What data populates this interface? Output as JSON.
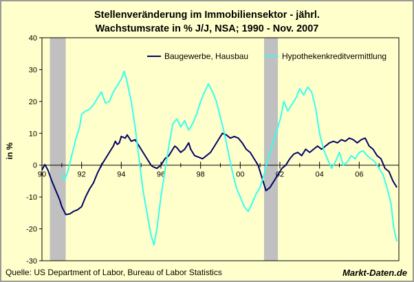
{
  "chart_data": {
    "type": "line",
    "title_lines": [
      "Stellenveränderung im Immobiliensektor - jährl.",
      "Wachstumsrate in % J/J, NSA; 1990 - Nov. 2007"
    ],
    "ylabel": "in %",
    "xlabel": "",
    "ylim": [
      -30,
      40
    ],
    "xlim": [
      1990,
      2008
    ],
    "y_ticks": [
      "40",
      "30",
      "20",
      "10",
      "0",
      "-10",
      "-20",
      "-30"
    ],
    "x_ticks": [
      "90",
      "92",
      "94",
      "96",
      "98",
      "00",
      "02",
      "04",
      "06"
    ],
    "grid": false,
    "legend_position": "top-right",
    "recessions": [
      [
        1990.4,
        1991.2
      ],
      [
        2001.2,
        2001.9
      ]
    ],
    "series": [
      {
        "name": "Baugewerbe, Hausbau",
        "color": "#000066",
        "points": [
          [
            1990.0,
            -1.5
          ],
          [
            1990.15,
            0.2
          ],
          [
            1990.3,
            -1.5
          ],
          [
            1990.5,
            -5
          ],
          [
            1990.7,
            -8
          ],
          [
            1990.9,
            -11
          ],
          [
            1991.0,
            -13
          ],
          [
            1991.2,
            -15.5
          ],
          [
            1991.4,
            -15.3
          ],
          [
            1991.6,
            -14.5
          ],
          [
            1991.8,
            -14
          ],
          [
            1992.0,
            -13
          ],
          [
            1992.2,
            -10
          ],
          [
            1992.4,
            -7.5
          ],
          [
            1992.6,
            -5.5
          ],
          [
            1992.8,
            -2.5
          ],
          [
            1993.0,
            0
          ],
          [
            1993.2,
            2
          ],
          [
            1993.4,
            4
          ],
          [
            1993.6,
            6
          ],
          [
            1993.7,
            7.5
          ],
          [
            1993.8,
            6.5
          ],
          [
            1993.9,
            7
          ],
          [
            1994.0,
            9
          ],
          [
            1994.2,
            8.5
          ],
          [
            1994.3,
            9.5
          ],
          [
            1994.5,
            7.5
          ],
          [
            1994.7,
            8
          ],
          [
            1994.9,
            6
          ],
          [
            1995.1,
            4
          ],
          [
            1995.3,
            2
          ],
          [
            1995.5,
            0
          ],
          [
            1995.6,
            -0.5
          ],
          [
            1995.8,
            -1
          ],
          [
            1996.0,
            0
          ],
          [
            1996.2,
            2
          ],
          [
            1996.4,
            3
          ],
          [
            1996.6,
            5
          ],
          [
            1996.7,
            6
          ],
          [
            1996.8,
            5.5
          ],
          [
            1997.0,
            4
          ],
          [
            1997.2,
            5
          ],
          [
            1997.4,
            7
          ],
          [
            1997.5,
            5
          ],
          [
            1997.7,
            3
          ],
          [
            1997.9,
            2.5
          ],
          [
            1998.1,
            2
          ],
          [
            1998.3,
            3
          ],
          [
            1998.5,
            4
          ],
          [
            1998.7,
            6
          ],
          [
            1998.9,
            8
          ],
          [
            1999.1,
            10
          ],
          [
            1999.3,
            9.5
          ],
          [
            1999.5,
            8.5
          ],
          [
            1999.7,
            9
          ],
          [
            1999.9,
            8.5
          ],
          [
            2000.1,
            7
          ],
          [
            2000.3,
            5
          ],
          [
            2000.5,
            4
          ],
          [
            2000.7,
            2
          ],
          [
            2000.9,
            0
          ],
          [
            2001.1,
            -4
          ],
          [
            2001.3,
            -8
          ],
          [
            2001.5,
            -7
          ],
          [
            2001.7,
            -5
          ],
          [
            2001.9,
            -3
          ],
          [
            2002.1,
            -1
          ],
          [
            2002.3,
            0
          ],
          [
            2002.5,
            2
          ],
          [
            2002.7,
            3.5
          ],
          [
            2002.9,
            4
          ],
          [
            2003.1,
            3
          ],
          [
            2003.3,
            5
          ],
          [
            2003.5,
            4
          ],
          [
            2003.7,
            5
          ],
          [
            2003.9,
            6
          ],
          [
            2004.1,
            5
          ],
          [
            2004.3,
            6
          ],
          [
            2004.5,
            7
          ],
          [
            2004.7,
            7.5
          ],
          [
            2004.9,
            7
          ],
          [
            2005.1,
            8
          ],
          [
            2005.3,
            7.5
          ],
          [
            2005.5,
            8.5
          ],
          [
            2005.7,
            8
          ],
          [
            2005.9,
            7
          ],
          [
            2006.1,
            8
          ],
          [
            2006.3,
            8.5
          ],
          [
            2006.5,
            6
          ],
          [
            2006.7,
            5
          ],
          [
            2006.9,
            3
          ],
          [
            2007.1,
            2
          ],
          [
            2007.3,
            -1
          ],
          [
            2007.5,
            -2
          ],
          [
            2007.7,
            -5
          ],
          [
            2007.9,
            -7
          ]
        ]
      },
      {
        "name": "Hypothekenkreditvermittlung",
        "color": "#33ffee",
        "points": [
          [
            1991.0,
            -3
          ],
          [
            1991.15,
            -4.5
          ],
          [
            1991.3,
            -2
          ],
          [
            1991.5,
            3
          ],
          [
            1991.7,
            8
          ],
          [
            1991.9,
            12
          ],
          [
            1992.0,
            16
          ],
          [
            1992.2,
            17
          ],
          [
            1992.4,
            17.5
          ],
          [
            1992.6,
            19
          ],
          [
            1992.8,
            21
          ],
          [
            1993.0,
            23
          ],
          [
            1993.2,
            19.5
          ],
          [
            1993.4,
            20
          ],
          [
            1993.6,
            23
          ],
          [
            1993.8,
            25
          ],
          [
            1994.0,
            27
          ],
          [
            1994.15,
            29.5
          ],
          [
            1994.3,
            26
          ],
          [
            1994.5,
            20
          ],
          [
            1994.7,
            12
          ],
          [
            1994.9,
            2
          ],
          [
            1995.1,
            -8
          ],
          [
            1995.3,
            -15
          ],
          [
            1995.5,
            -22
          ],
          [
            1995.65,
            -25
          ],
          [
            1995.8,
            -20
          ],
          [
            1996.0,
            -10
          ],
          [
            1996.2,
            -2
          ],
          [
            1996.4,
            6
          ],
          [
            1996.6,
            13
          ],
          [
            1996.8,
            14.5
          ],
          [
            1997.0,
            12
          ],
          [
            1997.2,
            14
          ],
          [
            1997.4,
            11
          ],
          [
            1997.6,
            13
          ],
          [
            1997.8,
            16
          ],
          [
            1998.0,
            20
          ],
          [
            1998.2,
            23
          ],
          [
            1998.4,
            25.5
          ],
          [
            1998.6,
            23
          ],
          [
            1998.8,
            20
          ],
          [
            1999.0,
            15
          ],
          [
            1999.2,
            10
          ],
          [
            1999.4,
            4
          ],
          [
            1999.6,
            -2
          ],
          [
            1999.8,
            -7
          ],
          [
            2000.0,
            -10
          ],
          [
            2000.2,
            -13
          ],
          [
            2000.4,
            -14.5
          ],
          [
            2000.6,
            -12
          ],
          [
            2000.8,
            -9
          ],
          [
            2001.0,
            -7
          ],
          [
            2001.2,
            -3
          ],
          [
            2001.4,
            2
          ],
          [
            2001.6,
            6
          ],
          [
            2001.8,
            10
          ],
          [
            2002.0,
            14
          ],
          [
            2002.2,
            20
          ],
          [
            2002.4,
            17
          ],
          [
            2002.6,
            19
          ],
          [
            2002.8,
            21
          ],
          [
            2003.0,
            24
          ],
          [
            2003.2,
            22
          ],
          [
            2003.4,
            24.5
          ],
          [
            2003.6,
            23
          ],
          [
            2003.8,
            18
          ],
          [
            2004.0,
            10
          ],
          [
            2004.2,
            5
          ],
          [
            2004.4,
            2
          ],
          [
            2004.6,
            -1
          ],
          [
            2004.8,
            1
          ],
          [
            2005.0,
            4
          ],
          [
            2005.2,
            0
          ],
          [
            2005.4,
            1
          ],
          [
            2005.6,
            3
          ],
          [
            2005.8,
            2
          ],
          [
            2006.0,
            4
          ],
          [
            2006.2,
            4.5
          ],
          [
            2006.4,
            3
          ],
          [
            2006.6,
            2
          ],
          [
            2006.8,
            1
          ],
          [
            2007.0,
            -1
          ],
          [
            2007.2,
            -3
          ],
          [
            2007.4,
            -7
          ],
          [
            2007.6,
            -12
          ],
          [
            2007.75,
            -20
          ],
          [
            2007.9,
            -24
          ]
        ]
      }
    ]
  },
  "footer": {
    "source": "Quelle: US Department of Labor, Bureau of Labor Statistics",
    "brand": "Markt-Daten.de"
  }
}
